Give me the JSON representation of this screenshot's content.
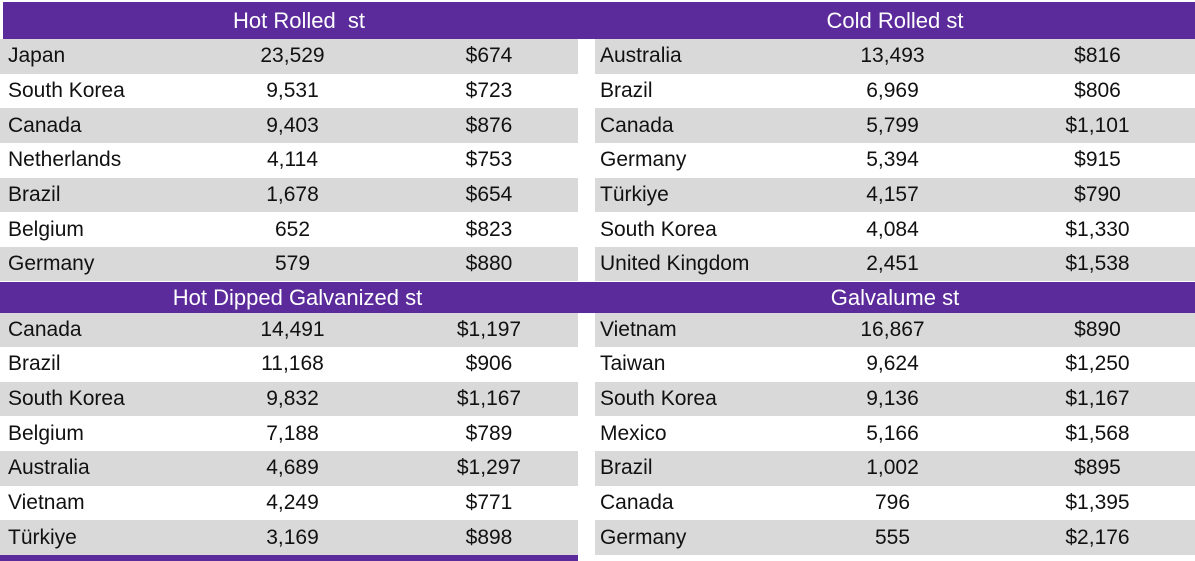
{
  "style": {
    "accent_purple": "#5C2B9B",
    "row_gray": "#D9D9D9",
    "row_white": "#FFFFFF",
    "header_text": "#FFFFFF",
    "body_text": "#111111"
  },
  "tables": [
    {
      "id": "hot-rolled",
      "title": "Hot Rolled  st",
      "rows": [
        [
          "Japan",
          "23,529",
          "$674"
        ],
        [
          "South Korea",
          "9,531",
          "$723"
        ],
        [
          "Canada",
          "9,403",
          "$876"
        ],
        [
          "Netherlands",
          "4,114",
          "$753"
        ],
        [
          "Brazil",
          "1,678",
          "$654"
        ],
        [
          "Belgium",
          "652",
          "$823"
        ],
        [
          "Germany",
          "579",
          "$880"
        ]
      ]
    },
    {
      "id": "cold-rolled",
      "title": "Cold Rolled st",
      "rows": [
        [
          "Australia",
          "13,493",
          "$816"
        ],
        [
          "Brazil",
          "6,969",
          "$806"
        ],
        [
          "Canada",
          "5,799",
          "$1,101"
        ],
        [
          "Germany",
          "5,394",
          "$915"
        ],
        [
          "Türkiye",
          "4,157",
          "$790"
        ],
        [
          "South Korea",
          "4,084",
          "$1,330"
        ],
        [
          "United Kingdom",
          "2,451",
          "$1,538"
        ]
      ]
    },
    {
      "id": "hot-dipped-galvanized",
      "title": "Hot Dipped Galvanized st",
      "rows": [
        [
          "Canada",
          "14,491",
          "$1,197"
        ],
        [
          "Brazil",
          "11,168",
          "$906"
        ],
        [
          "South Korea",
          "9,832",
          "$1,167"
        ],
        [
          "Belgium",
          "7,188",
          "$789"
        ],
        [
          "Australia",
          "4,689",
          "$1,297"
        ],
        [
          "Vietnam",
          "4,249",
          "$771"
        ],
        [
          "Türkiye",
          "3,169",
          "$898"
        ]
      ]
    },
    {
      "id": "galvalume",
      "title": "Galvalume st",
      "rows": [
        [
          "Vietnam",
          "16,867",
          "$890"
        ],
        [
          "Taiwan",
          "9,624",
          "$1,250"
        ],
        [
          "South Korea",
          "9,136",
          "$1,167"
        ],
        [
          "Mexico",
          "5,166",
          "$1,568"
        ],
        [
          "Brazil",
          "1,002",
          "$895"
        ],
        [
          "Canada",
          "796",
          "$1,395"
        ],
        [
          "Germany",
          "555",
          "$2,176"
        ]
      ]
    }
  ],
  "chart_data": [
    {
      "type": "table",
      "title": "Hot Rolled  st",
      "columns": [
        "country",
        "quantity",
        "price_usd"
      ],
      "rows": [
        [
          "Japan",
          23529,
          674
        ],
        [
          "South Korea",
          9531,
          723
        ],
        [
          "Canada",
          9403,
          876
        ],
        [
          "Netherlands",
          4114,
          753
        ],
        [
          "Brazil",
          1678,
          654
        ],
        [
          "Belgium",
          652,
          823
        ],
        [
          "Germany",
          579,
          880
        ]
      ]
    },
    {
      "type": "table",
      "title": "Cold Rolled st",
      "columns": [
        "country",
        "quantity",
        "price_usd"
      ],
      "rows": [
        [
          "Australia",
          13493,
          816
        ],
        [
          "Brazil",
          6969,
          806
        ],
        [
          "Canada",
          5799,
          1101
        ],
        [
          "Germany",
          5394,
          915
        ],
        [
          "Türkiye",
          4157,
          790
        ],
        [
          "South Korea",
          4084,
          1330
        ],
        [
          "United Kingdom",
          2451,
          1538
        ]
      ]
    },
    {
      "type": "table",
      "title": "Hot Dipped Galvanized st",
      "columns": [
        "country",
        "quantity",
        "price_usd"
      ],
      "rows": [
        [
          "Canada",
          14491,
          1197
        ],
        [
          "Brazil",
          11168,
          906
        ],
        [
          "South Korea",
          9832,
          1167
        ],
        [
          "Belgium",
          7188,
          789
        ],
        [
          "Australia",
          4689,
          1297
        ],
        [
          "Vietnam",
          4249,
          771
        ],
        [
          "Türkiye",
          3169,
          898
        ]
      ]
    },
    {
      "type": "table",
      "title": "Galvalume st",
      "columns": [
        "country",
        "quantity",
        "price_usd"
      ],
      "rows": [
        [
          "Vietnam",
          16867,
          890
        ],
        [
          "Taiwan",
          9624,
          1250
        ],
        [
          "South Korea",
          9136,
          1167
        ],
        [
          "Mexico",
          5166,
          1568
        ],
        [
          "Brazil",
          1002,
          895
        ],
        [
          "Canada",
          796,
          1395
        ],
        [
          "Germany",
          555,
          2176
        ]
      ]
    }
  ]
}
